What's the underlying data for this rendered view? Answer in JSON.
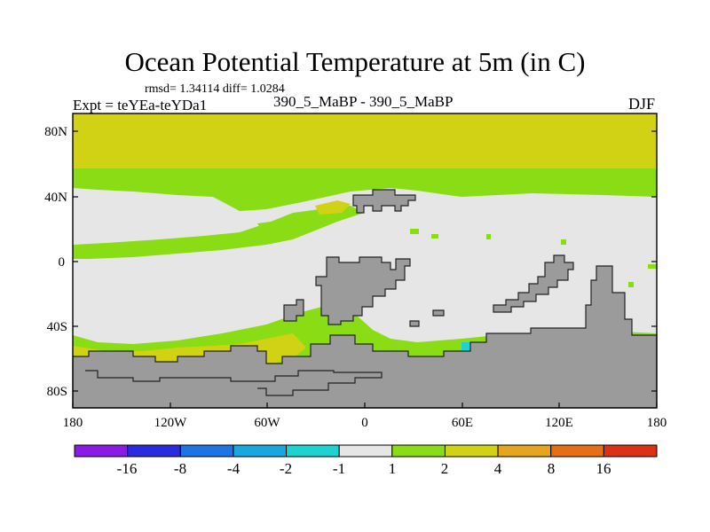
{
  "title": "Ocean Potential Temperature at 5m (in C)",
  "stats": "rmsd= 1.34114  diff= 1.0284",
  "experiment": "Expt = teYEa-teYDa1",
  "case": "390_5_MaBP - 390_5_MaBP",
  "season": "DJF",
  "lat_ticks": [
    "80N",
    "40N",
    "0",
    "40S",
    "80S"
  ],
  "lon_ticks": [
    "180",
    "120W",
    "60W",
    "0",
    "60E",
    "120E",
    "180"
  ],
  "colorbar": {
    "colors": [
      "#8a1be6",
      "#2a2ae0",
      "#1e74e6",
      "#18a8e0",
      "#1ed2d2",
      "#e6e6e6",
      "#8adc14",
      "#d2d214",
      "#e6a51e",
      "#e66e14",
      "#dc3214"
    ],
    "labels": [
      "-16",
      "-8",
      "-4",
      "-2",
      "-1",
      "1",
      "2",
      "4",
      "8",
      "16"
    ]
  },
  "field_colors": {
    "land": "#9b9b9b",
    "near_zero": "#e6e6e6",
    "band_1_2": "#8adc14",
    "band_2_4": "#d2d214",
    "band_4_8": "#e6a51e",
    "band_8_16": "#e66e14",
    "band_neg_1_2": "#1ed2d2"
  }
}
